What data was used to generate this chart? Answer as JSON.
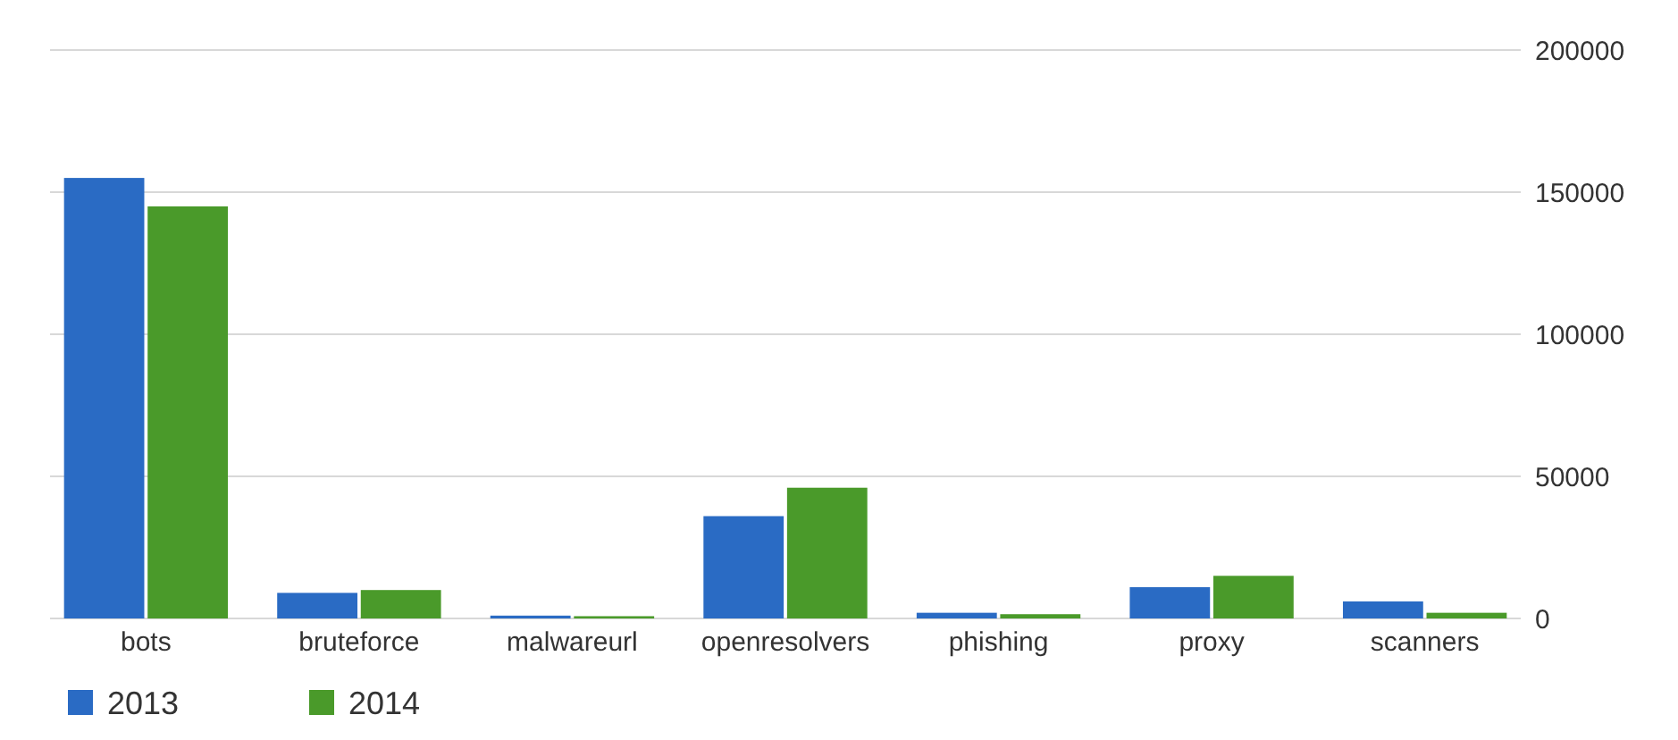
{
  "chart_data": {
    "type": "bar",
    "categories": [
      "bots",
      "bruteforce",
      "malwareurl",
      "openresolvers",
      "phishing",
      "proxy",
      "scanners"
    ],
    "series": [
      {
        "name": "2013",
        "color": "#2a6bc4",
        "values": [
          155000,
          9000,
          1000,
          36000,
          2000,
          11000,
          6000
        ]
      },
      {
        "name": "2014",
        "color": "#4a9a2a",
        "values": [
          145000,
          10000,
          800,
          46000,
          1500,
          15000,
          2000
        ]
      }
    ],
    "ylim": [
      0,
      200000
    ],
    "yticks": [
      0,
      50000,
      100000,
      150000,
      200000
    ],
    "grid": "y",
    "legend": "bottom left"
  }
}
